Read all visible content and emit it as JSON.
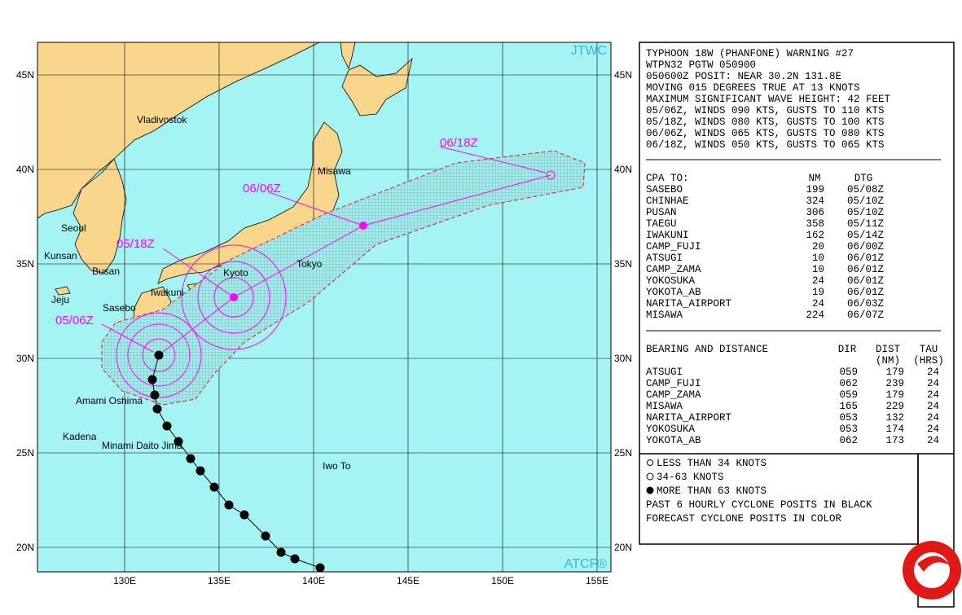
{
  "map": {
    "lat_labels": [
      "45N",
      "40N",
      "35N",
      "30N",
      "25N",
      "20N"
    ],
    "lon_labels": [
      "130E",
      "135E",
      "140E",
      "145E",
      "150E",
      "155E"
    ],
    "places": [
      "Vladivostok",
      "Misawa",
      "Seoul",
      "Kunsan",
      "Busan",
      "Jeju",
      "Sasebo",
      "Iwakuni",
      "Kyoto",
      "Tokyo",
      "Amami Oshima",
      "Kadena",
      "Minami Daito Jima",
      "Iwo To"
    ],
    "forecast_labels": [
      "06/18Z",
      "06/06Z",
      "05/18Z",
      "05/06Z"
    ],
    "credits": [
      "JTWC",
      "ATCF®"
    ]
  },
  "warning": {
    "lines": [
      "TYPHOON 18W (PHANFONE) WARNING #27",
      "WTPN32 PGTW 050900",
      "050600Z POSIT: NEAR 30.2N 131.8E",
      "MOVING 015 DEGREES TRUE AT 13 KNOTS",
      "MAXIMUM SIGNIFICANT WAVE HEIGHT: 42 FEET",
      "05/06Z, WINDS 090 KTS, GUSTS TO 110 KTS",
      "05/18Z, WINDS 080 KTS, GUSTS TO 100 KTS",
      "06/06Z, WINDS 065 KTS, GUSTS TO 080 KTS",
      "06/18Z, WINDS 050 KTS, GUSTS TO 065 KTS"
    ]
  },
  "cpa": {
    "header": [
      "CPA TO:",
      "NM",
      "DTG"
    ],
    "rows": [
      [
        "SASEBO",
        "199",
        "05/08Z"
      ],
      [
        "CHINHAE",
        "324",
        "05/10Z"
      ],
      [
        "PUSAN",
        "306",
        "05/10Z"
      ],
      [
        "TAEGU",
        "358",
        "05/11Z"
      ],
      [
        "IWAKUNI",
        "162",
        "05/14Z"
      ],
      [
        "CAMP_FUJI",
        "20",
        "06/00Z"
      ],
      [
        "ATSUGI",
        "10",
        "06/01Z"
      ],
      [
        "CAMP_ZAMA",
        "10",
        "06/01Z"
      ],
      [
        "YOKOSUKA",
        "24",
        "06/01Z"
      ],
      [
        "YOKOTA_AB",
        "19",
        "06/01Z"
      ],
      [
        "NARITA_AIRPORT",
        "24",
        "06/03Z"
      ],
      [
        "MISAWA",
        "224",
        "06/07Z"
      ]
    ]
  },
  "bearing": {
    "header": [
      "BEARING AND DISTANCE",
      "DIR",
      "DIST",
      "TAU"
    ],
    "units": [
      "(NM)",
      "(HRS)"
    ],
    "rows": [
      [
        "ATSUGI",
        "059",
        "179",
        "24"
      ],
      [
        "CAMP_FUJI",
        "062",
        "239",
        "24"
      ],
      [
        "CAMP_ZAMA",
        "059",
        "179",
        "24"
      ],
      [
        "MISAWA",
        "165",
        "229",
        "24"
      ],
      [
        "NARITA_AIRPORT",
        "053",
        "132",
        "24"
      ],
      [
        "YOKOSUKA",
        "053",
        "174",
        "24"
      ],
      [
        "YOKOTA_AB",
        "062",
        "173",
        "24"
      ]
    ]
  },
  "legend": {
    "items": [
      "LESS THAN 34 KNOTS",
      "34-63 KNOTS",
      "MORE THAN 63 KNOTS"
    ],
    "notes": [
      "PAST 6 HOURLY CYCLONE POSITS IN BLACK",
      "FORECAST CYCLONE POSITS IN COLOR"
    ]
  }
}
